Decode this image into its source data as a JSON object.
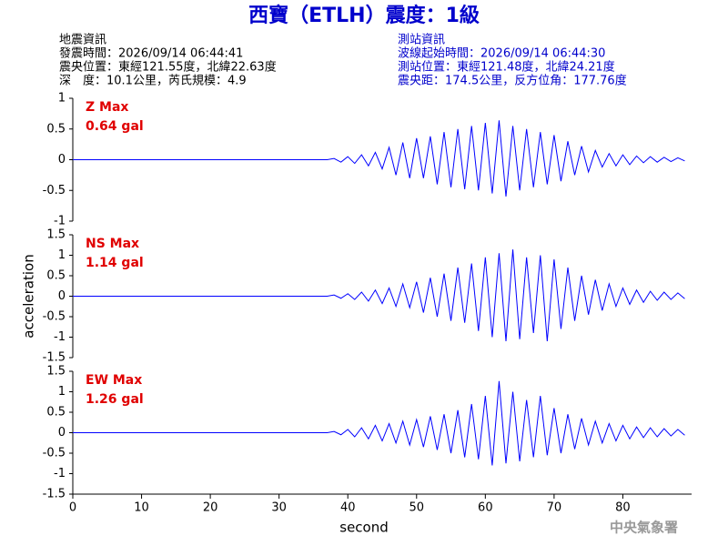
{
  "header": {
    "title": "西寶（ETLH）震度：1級",
    "left": [
      "地震資訊",
      "發震時間：2026/09/14 06:44:41",
      "震央位置：東經121.55度，北緯22.63度",
      "深　度：10.1公里，芮氏規模：4.9"
    ],
    "right": [
      "測站資訊",
      "波線起始時間：2026/09/14 06:44:30",
      "測站位置：東經121.48度，北緯24.21度",
      "震央距：174.5公里，反方位角：177.76度"
    ]
  },
  "footer": "中央氣象署",
  "chart_data": [
    {
      "type": "line",
      "annotations": [
        "Z Max",
        "0.64 gal"
      ],
      "color": "#0000ff",
      "xlim": [
        0,
        90
      ],
      "ylim": [
        -1,
        1
      ],
      "yticks": [
        -1,
        -0.5,
        0,
        0.5,
        1
      ],
      "x": [
        0,
        37,
        38,
        39,
        40,
        41,
        42,
        43,
        44,
        45,
        46,
        47,
        48,
        49,
        50,
        51,
        52,
        53,
        54,
        55,
        56,
        57,
        58,
        59,
        60,
        61,
        62,
        63,
        64,
        65,
        66,
        67,
        68,
        69,
        70,
        71,
        72,
        73,
        74,
        75,
        76,
        77,
        78,
        79,
        80,
        81,
        82,
        83,
        84,
        85,
        86,
        87,
        88,
        89
      ],
      "values": [
        0,
        0,
        0.02,
        -0.04,
        0.05,
        -0.06,
        0.08,
        -0.1,
        0.12,
        -0.15,
        0.2,
        -0.25,
        0.28,
        -0.3,
        0.35,
        -0.3,
        0.38,
        -0.4,
        0.45,
        -0.45,
        0.5,
        -0.48,
        0.55,
        -0.5,
        0.6,
        -0.55,
        0.64,
        -0.6,
        0.55,
        -0.5,
        0.5,
        -0.45,
        0.45,
        -0.4,
        0.4,
        -0.35,
        0.3,
        -0.25,
        0.22,
        -0.2,
        0.15,
        -0.12,
        0.1,
        -0.1,
        0.08,
        -0.08,
        0.06,
        -0.05,
        0.05,
        -0.04,
        0.04,
        -0.03,
        0.03,
        -0.02
      ]
    },
    {
      "type": "line",
      "annotations": [
        "NS Max",
        "1.14 gal"
      ],
      "ylabel": "acceleration",
      "color": "#0000ff",
      "xlim": [
        0,
        90
      ],
      "ylim": [
        -1.5,
        1.5
      ],
      "yticks": [
        -1.5,
        -1,
        -0.5,
        0,
        0.5,
        1,
        1.5
      ],
      "x": [
        0,
        37,
        38,
        39,
        40,
        41,
        42,
        43,
        44,
        45,
        46,
        47,
        48,
        49,
        50,
        51,
        52,
        53,
        54,
        55,
        56,
        57,
        58,
        59,
        60,
        61,
        62,
        63,
        64,
        65,
        66,
        67,
        68,
        69,
        70,
        71,
        72,
        73,
        74,
        75,
        76,
        77,
        78,
        79,
        80,
        81,
        82,
        83,
        84,
        85,
        86,
        87,
        88,
        89
      ],
      "values": [
        0,
        0,
        0.03,
        -0.05,
        0.06,
        -0.08,
        0.1,
        -0.12,
        0.15,
        -0.18,
        0.2,
        -0.25,
        0.3,
        -0.28,
        0.35,
        -0.4,
        0.45,
        -0.5,
        0.55,
        -0.6,
        0.7,
        -0.65,
        0.8,
        -0.85,
        0.95,
        -1.0,
        1.05,
        -1.1,
        1.14,
        -1.05,
        0.95,
        -0.9,
        1.0,
        -1.1,
        0.9,
        -0.8,
        0.7,
        -0.6,
        0.5,
        -0.45,
        0.4,
        -0.35,
        0.3,
        -0.25,
        0.2,
        -0.2,
        0.15,
        -0.15,
        0.12,
        -0.1,
        0.1,
        -0.08,
        0.08,
        -0.06
      ]
    },
    {
      "type": "line",
      "annotations": [
        "EW Max",
        "1.26 gal"
      ],
      "xlabel": "second",
      "color": "#0000ff",
      "xlim": [
        0,
        90
      ],
      "ylim": [
        -1.5,
        1.5
      ],
      "yticks": [
        -1.5,
        -1,
        -0.5,
        0,
        0.5,
        1,
        1.5
      ],
      "xticks": [
        0,
        10,
        20,
        30,
        40,
        50,
        60,
        70,
        80
      ],
      "x": [
        0,
        37,
        38,
        39,
        40,
        41,
        42,
        43,
        44,
        45,
        46,
        47,
        48,
        49,
        50,
        51,
        52,
        53,
        54,
        55,
        56,
        57,
        58,
        59,
        60,
        61,
        62,
        63,
        64,
        65,
        66,
        67,
        68,
        69,
        70,
        71,
        72,
        73,
        74,
        75,
        76,
        77,
        78,
        79,
        80,
        81,
        82,
        83,
        84,
        85,
        86,
        87,
        88,
        89
      ],
      "values": [
        0,
        0,
        0.03,
        -0.05,
        0.08,
        -0.1,
        0.12,
        -0.15,
        0.18,
        -0.2,
        0.22,
        -0.25,
        0.28,
        -0.3,
        0.32,
        -0.35,
        0.4,
        -0.42,
        0.45,
        -0.5,
        0.55,
        -0.6,
        0.7,
        -0.65,
        0.9,
        -0.8,
        1.26,
        -0.75,
        1.0,
        -0.7,
        0.8,
        -0.6,
        0.9,
        -0.55,
        0.6,
        -0.5,
        0.45,
        -0.4,
        0.35,
        -0.3,
        0.28,
        -0.25,
        0.22,
        -0.2,
        0.18,
        -0.15,
        0.14,
        -0.12,
        0.12,
        -0.1,
        0.1,
        -0.08,
        0.08,
        -0.06
      ]
    }
  ]
}
